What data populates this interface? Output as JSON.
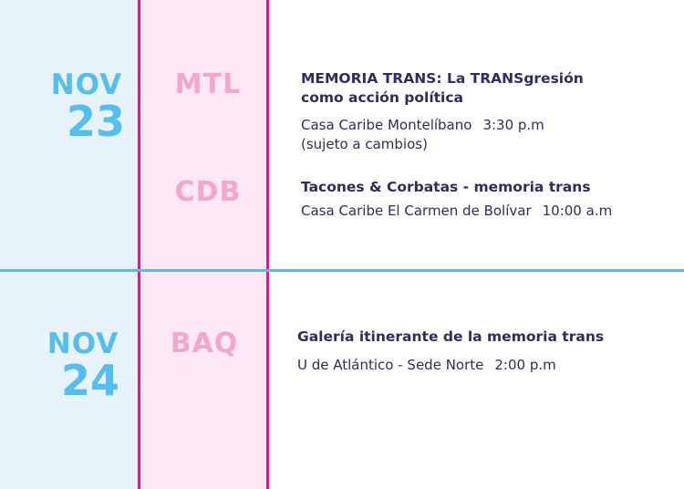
{
  "days": [
    {
      "month": "NOV",
      "day": "23",
      "events": [
        {
          "city": "MTL",
          "title_line1": "MEMORIA TRANS: La TRANSgresión",
          "title_line2": "como acción política",
          "venue": "Casa Caribe Montelíbano",
          "time": "3:30 p.m",
          "note": "(sujeto a cambios)"
        },
        {
          "city": "CDB",
          "title_line1": "Tacones & Corbatas - memoria trans",
          "venue": "Casa Caribe El Carmen de Bolívar",
          "time": "10:00 a.m"
        }
      ]
    },
    {
      "month": "NOV",
      "day": "24",
      "events": [
        {
          "city": "BAQ",
          "title_line1": "Galería itinerante de la memoria trans",
          "venue": "U de Atlántico - Sede Norte",
          "time": "2:00 p.m"
        }
      ]
    }
  ],
  "colors": {
    "date_column_bg": "#e6f3fb",
    "city_column_bg": "#fde9f4",
    "divider_vertical": "#e0168a",
    "divider_horizontal": "#5bb8ea",
    "date_text": "#56bdf0",
    "city_text": "#f5a7c6",
    "event_text": "#2e2d5e"
  }
}
